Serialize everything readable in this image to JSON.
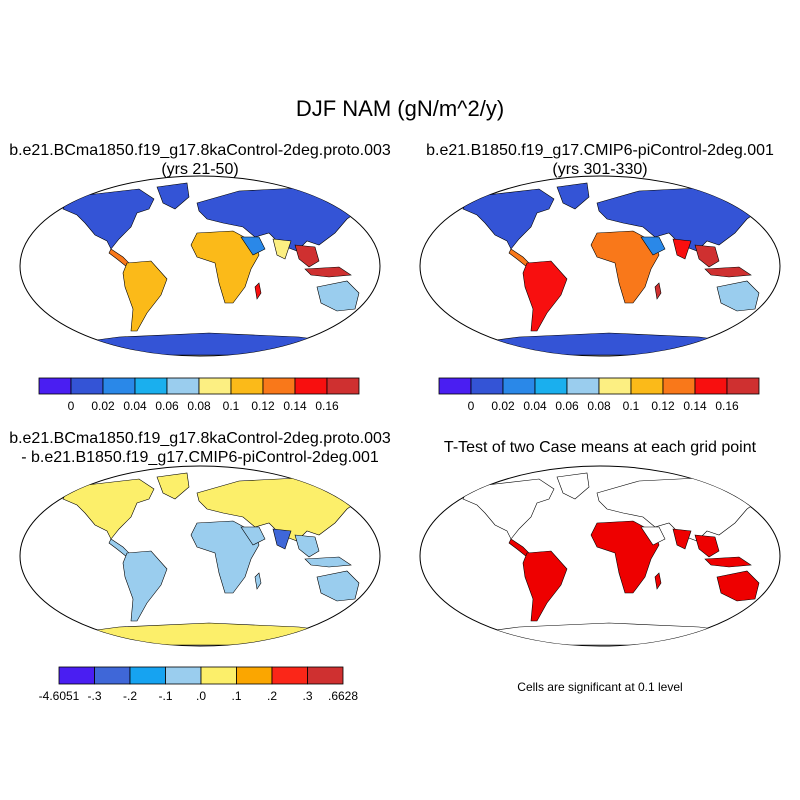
{
  "title": "DJF NAM (gN/m^2/y)",
  "panels": {
    "p1": {
      "title_line1": "b.e21.BCma1850.f19_g17.8kaControl-2deg.proto.003",
      "title_line2": "(yrs 21-50)"
    },
    "p2": {
      "title_line1": "b.e21.B1850.f19_g17.CMIP6-piControl-2deg.001",
      "title_line2": "(yrs 301-330)"
    },
    "p3": {
      "title_line1": "b.e21.BCma1850.f19_g17.8kaControl-2deg.proto.003",
      "title_line2": "- b.e21.B1850.f19_g17.CMIP6-piControl-2deg.001"
    },
    "p4": {
      "title_line1": "T-Test of two Case means at each grid point",
      "note": "Cells are significant at 0.1 level"
    }
  },
  "colorbars": {
    "mean": {
      "colors": [
        "#4a1ef2",
        "#3454d6",
        "#2a88e8",
        "#1aafee",
        "#9acdee",
        "#fcef82",
        "#fbba19",
        "#f9781a",
        "#f80f0f",
        "#cf3030"
      ],
      "labels": [
        "0",
        "0.02",
        "0.04",
        "0.06",
        "0.08",
        "0.1",
        "0.12",
        "0.14",
        "0.16"
      ]
    },
    "diff": {
      "colors": [
        "#4a1ef2",
        "#3f67d8",
        "#16a3f1",
        "#9acdee",
        "#fcef6a",
        "#fba600",
        "#fb2618",
        "#cf3030"
      ],
      "labels": [
        "-4.6051",
        "-.3",
        "-.2",
        "-.1",
        ".0",
        ".1",
        ".2",
        ".3",
        ".6628"
      ]
    }
  },
  "legend_colors": {
    "ocean": "#ffffff",
    "map_outline": "#000000",
    "significance": "#ee0000"
  }
}
